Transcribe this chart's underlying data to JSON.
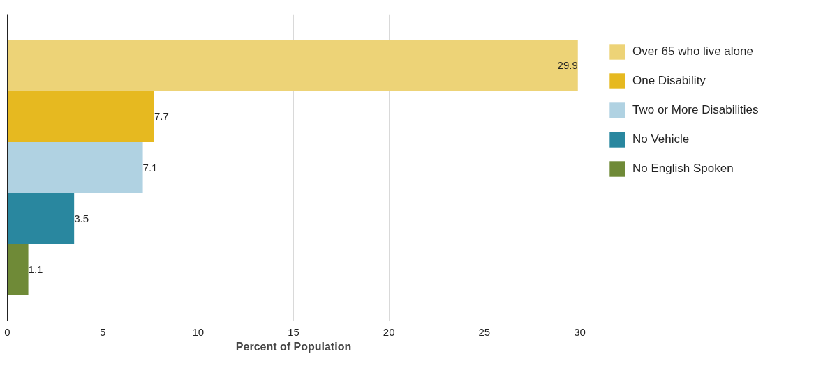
{
  "chart_data": {
    "type": "bar",
    "orientation": "horizontal",
    "xlabel": "Percent of Population",
    "categories": [
      null
    ],
    "series": [
      {
        "name": "Over 65 who live alone",
        "color": "#edd377",
        "values": [
          29.9
        ]
      },
      {
        "name": "One Disability",
        "color": "#e6b920",
        "values": [
          7.7
        ]
      },
      {
        "name": "Two or More Disabilities",
        "color": "#b0d2e2",
        "values": [
          7.1
        ]
      },
      {
        "name": "No Vehicle",
        "color": "#29879f",
        "values": [
          3.5
        ]
      },
      {
        "name": "No English Spoken",
        "color": "#6f8a37",
        "values": [
          1.1
        ]
      }
    ],
    "xlim": [
      0,
      30
    ],
    "xticks": [
      0,
      5,
      10,
      15,
      20,
      25,
      30
    ],
    "grid": "x",
    "legend": "right",
    "data_labels": true
  }
}
